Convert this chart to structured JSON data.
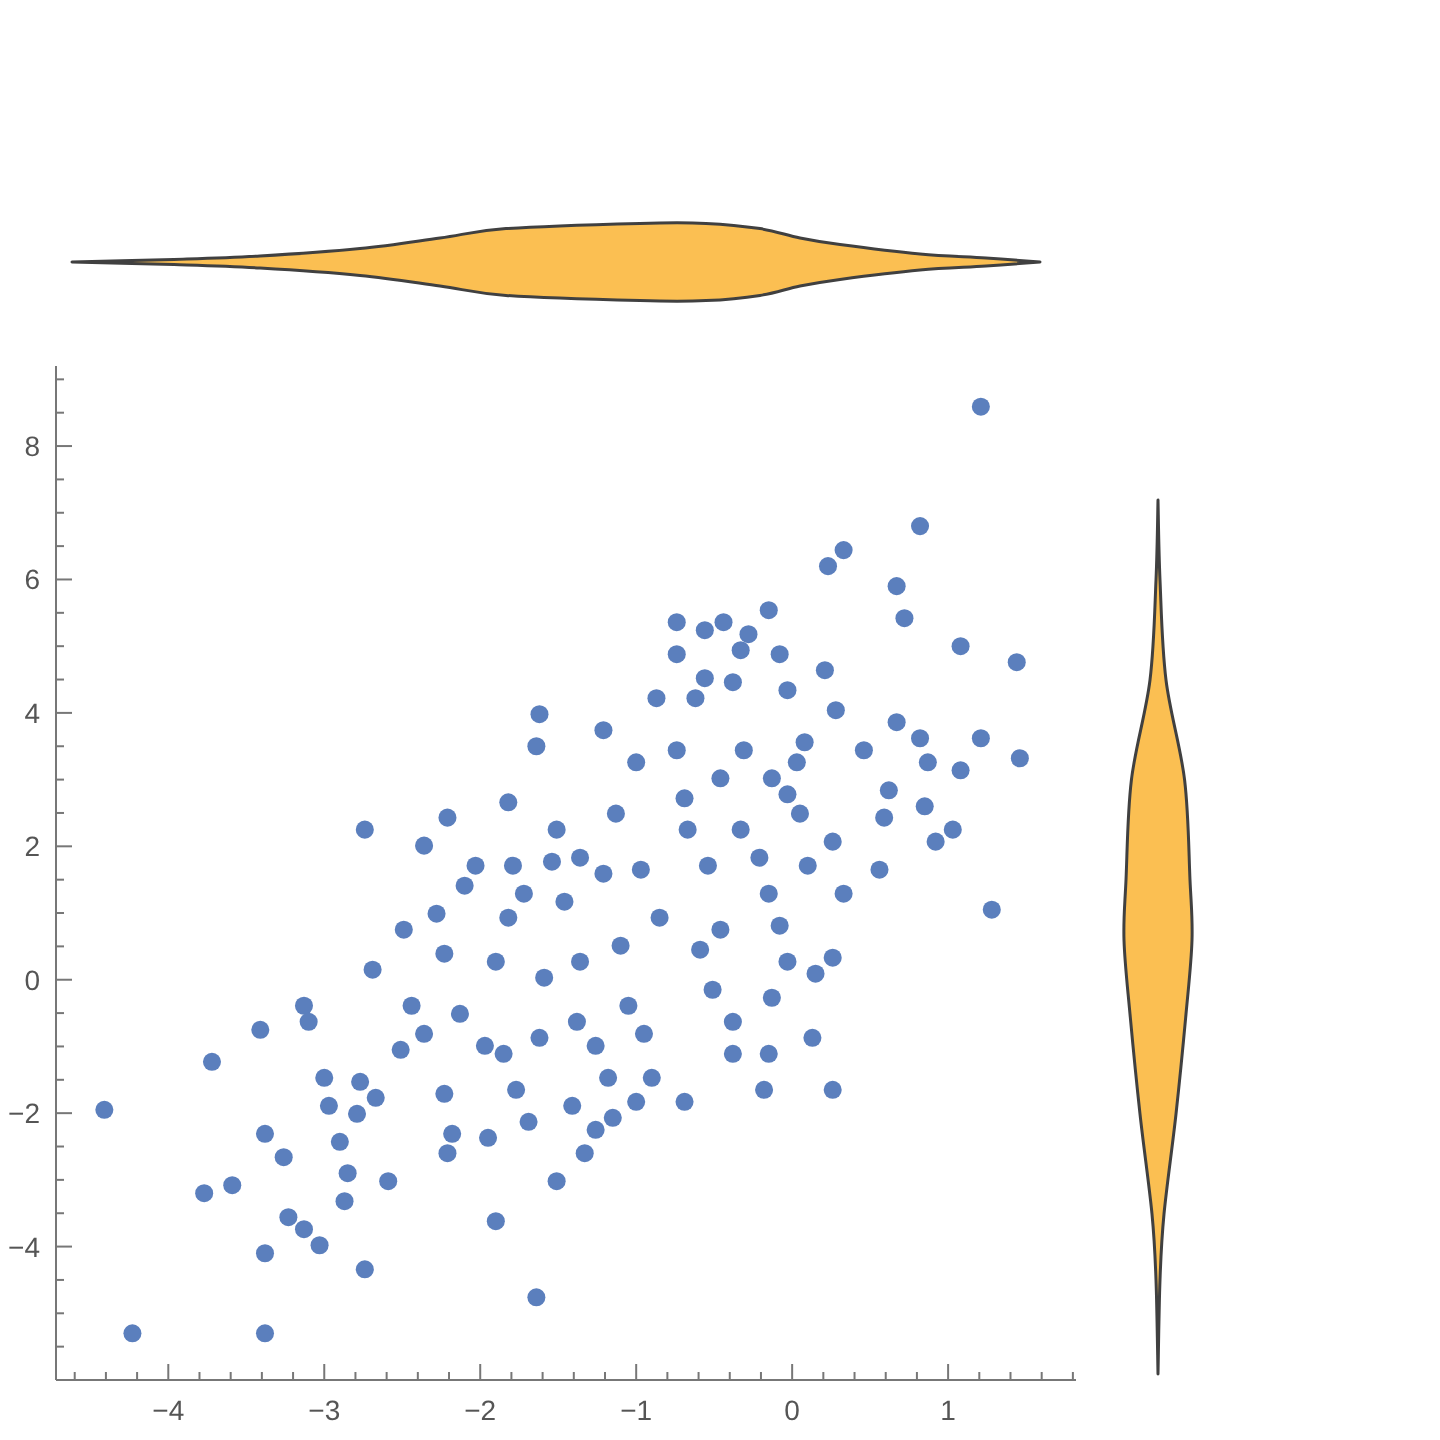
{
  "chart_data": {
    "type": "scatter",
    "color": "#5b7fbd",
    "marker": "circle",
    "xlim": [
      -4.72,
      1.82
    ],
    "ylim": [
      -6,
      9.2
    ],
    "xticks": [
      {
        "value": -4.6,
        "label": null
      },
      {
        "value": -4.4,
        "label": null
      },
      {
        "value": -4.2,
        "label": null
      },
      {
        "value": -4,
        "label": "−4"
      },
      {
        "value": -3.8,
        "label": null
      },
      {
        "value": -3.6,
        "label": null
      },
      {
        "value": -3.4,
        "label": null
      },
      {
        "value": -3.2,
        "label": null
      },
      {
        "value": -3,
        "label": "−3"
      },
      {
        "value": -2.8,
        "label": null
      },
      {
        "value": -2.6,
        "label": null
      },
      {
        "value": -2.4,
        "label": null
      },
      {
        "value": -2.2,
        "label": null
      },
      {
        "value": -2,
        "label": "−2"
      },
      {
        "value": -1.8,
        "label": null
      },
      {
        "value": -1.6,
        "label": null
      },
      {
        "value": -1.4,
        "label": null
      },
      {
        "value": -1.2,
        "label": null
      },
      {
        "value": -1,
        "label": "−1"
      },
      {
        "value": -0.8,
        "label": null
      },
      {
        "value": -0.6,
        "label": null
      },
      {
        "value": -0.4,
        "label": null
      },
      {
        "value": -0.2,
        "label": null
      },
      0,
      {
        "value": 0.2,
        "label": null
      },
      {
        "value": 0.4,
        "label": null
      },
      {
        "value": 0.6,
        "label": null
      },
      {
        "value": 0.8,
        "label": null
      },
      1,
      {
        "value": 1.2,
        "label": null
      },
      {
        "value": 1.4,
        "label": null
      },
      {
        "value": 1.6,
        "label": null
      },
      {
        "value": 1.8,
        "label": null
      }
    ],
    "yticks": [
      {
        "value": -5.5,
        "label": null
      },
      {
        "value": -5,
        "label": null
      },
      {
        "value": -4.5,
        "label": null
      },
      {
        "value": -4,
        "label": "−4"
      },
      {
        "value": -3.5,
        "label": null
      },
      {
        "value": -3,
        "label": null
      },
      {
        "value": -2.5,
        "label": null
      },
      {
        "value": -2,
        "label": "−2"
      },
      {
        "value": -1.5,
        "label": null
      },
      {
        "value": -1,
        "label": null
      },
      {
        "value": -0.5,
        "label": null
      },
      0,
      {
        "value": 0.5,
        "label": null
      },
      {
        "value": 1,
        "label": null
      },
      {
        "value": 1.5,
        "label": null
      },
      2,
      {
        "value": 2.5,
        "label": null
      },
      {
        "value": 3,
        "label": null
      },
      {
        "value": 3.5,
        "label": null
      },
      4,
      {
        "value": 4.5,
        "label": null
      },
      {
        "value": 5,
        "label": null
      },
      {
        "value": 5.5,
        "label": null
      },
      6,
      {
        "value": 6.5,
        "label": null
      },
      {
        "value": 7,
        "label": null
      },
      {
        "value": 7.5,
        "label": null
      },
      8,
      {
        "value": 8.5,
        "label": null
      },
      {
        "value": 9,
        "label": null
      }
    ],
    "x": [
      1.21,
      0.82,
      0.33,
      0.23,
      0.67,
      -0.15,
      0.72,
      -0.74,
      -0.44,
      -0.56,
      -0.28,
      -0.33,
      -0.74,
      -0.08,
      1.08,
      1.44,
      -0.56,
      0.21,
      -0.38,
      -0.87,
      -0.62,
      -0.03,
      -1.21,
      -1.62,
      -1.64,
      -1.82,
      -2.21,
      -2.74,
      -2.36,
      -4.41,
      -4.23,
      -3.38,
      -3.72,
      -3.77,
      -3.59,
      -3.41,
      -3.13,
      -3.1,
      -3.38,
      -3.26,
      -3.23,
      -3.13,
      -3.03,
      -3.38,
      -2.74,
      -2.87,
      -2.85,
      -3.0,
      -2.97,
      -2.79,
      -2.9,
      -2.77,
      -2.67,
      -2.59,
      -2.69,
      -2.51,
      -2.49,
      -2.44,
      -2.28,
      -2.23,
      -2.36,
      -2.23,
      -2.21,
      -2.18,
      -2.13,
      -2.1,
      -2.03,
      -1.97,
      -1.95,
      -1.9,
      -1.9,
      -1.85,
      -1.82,
      -1.79,
      -1.77,
      -1.72,
      -1.69,
      -1.64,
      -1.62,
      -1.59,
      -1.51,
      -1.54,
      -1.46,
      -1.38,
      -1.41,
      -1.33,
      -1.26,
      -1.15,
      -1.0,
      -0.9,
      -0.69,
      -1.18,
      -1.26,
      -0.95,
      -0.38,
      -0.38,
      -0.15,
      -0.18,
      0.26,
      0.13,
      -0.13,
      0.15,
      0.26,
      -0.03,
      -0.51,
      -1.05,
      -1.36,
      -1.1,
      -0.85,
      -0.59,
      -0.46,
      -0.08,
      -0.15,
      0.1,
      0.33,
      0.56,
      0.92,
      1.28,
      -0.97,
      -0.54,
      -1.36,
      -1.0,
      -0.74,
      -0.31,
      0.08,
      0.28,
      0.67,
      0.82,
      1.21,
      1.46,
      0.87,
      1.08,
      0.62,
      0.85,
      0.59,
      1.03,
      0.46,
      0.03,
      -0.13,
      -0.46,
      -0.69,
      -1.13,
      -1.51,
      -0.67,
      -0.33,
      0.05,
      0.26,
      -0.21,
      -1.21,
      -0.03
    ],
    "values": [
      8.59,
      6.8,
      6.44,
      6.2,
      5.9,
      5.54,
      5.42,
      5.36,
      5.36,
      5.24,
      5.18,
      4.94,
      4.88,
      4.88,
      5.0,
      4.76,
      4.52,
      4.64,
      4.46,
      4.22,
      4.22,
      4.34,
      3.74,
      3.98,
      3.5,
      2.66,
      2.43,
      2.25,
      2.01,
      -1.95,
      -5.3,
      -5.3,
      -1.23,
      -3.2,
      -3.08,
      -0.75,
      -0.39,
      -0.63,
      -2.31,
      -2.66,
      -3.56,
      -3.74,
      -3.98,
      -4.1,
      -4.34,
      -3.32,
      -2.9,
      -1.47,
      -1.89,
      -2.01,
      -2.43,
      -1.53,
      -1.77,
      -3.02,
      0.15,
      -1.05,
      0.75,
      -0.39,
      0.99,
      0.39,
      -0.81,
      -1.71,
      -2.6,
      -2.31,
      -0.51,
      1.41,
      1.71,
      -0.99,
      -2.37,
      -3.62,
      0.27,
      -1.11,
      0.93,
      1.71,
      -1.65,
      1.29,
      -2.13,
      -4.76,
      -0.87,
      0.03,
      -3.02,
      1.77,
      1.17,
      -0.63,
      -1.89,
      -2.6,
      -2.25,
      -2.07,
      -1.83,
      -1.47,
      -1.83,
      -1.47,
      -0.99,
      -0.81,
      -1.11,
      -0.63,
      -1.11,
      -1.65,
      -1.65,
      -0.87,
      -0.27,
      0.09,
      0.33,
      0.27,
      -0.15,
      -0.39,
      0.27,
      0.51,
      0.93,
      0.45,
      0.75,
      0.81,
      1.29,
      1.71,
      1.29,
      1.65,
      2.07,
      1.05,
      1.65,
      1.71,
      1.83,
      3.26,
      3.44,
      3.44,
      3.56,
      4.04,
      3.86,
      3.62,
      3.62,
      3.32,
      3.26,
      3.14,
      2.84,
      2.6,
      2.43,
      2.25,
      3.44,
      3.26,
      3.02,
      3.02,
      2.72,
      2.49,
      2.25,
      2.25,
      2.25,
      2.49,
      2.07,
      1.83,
      1.59,
      2.78
    ]
  }
}
